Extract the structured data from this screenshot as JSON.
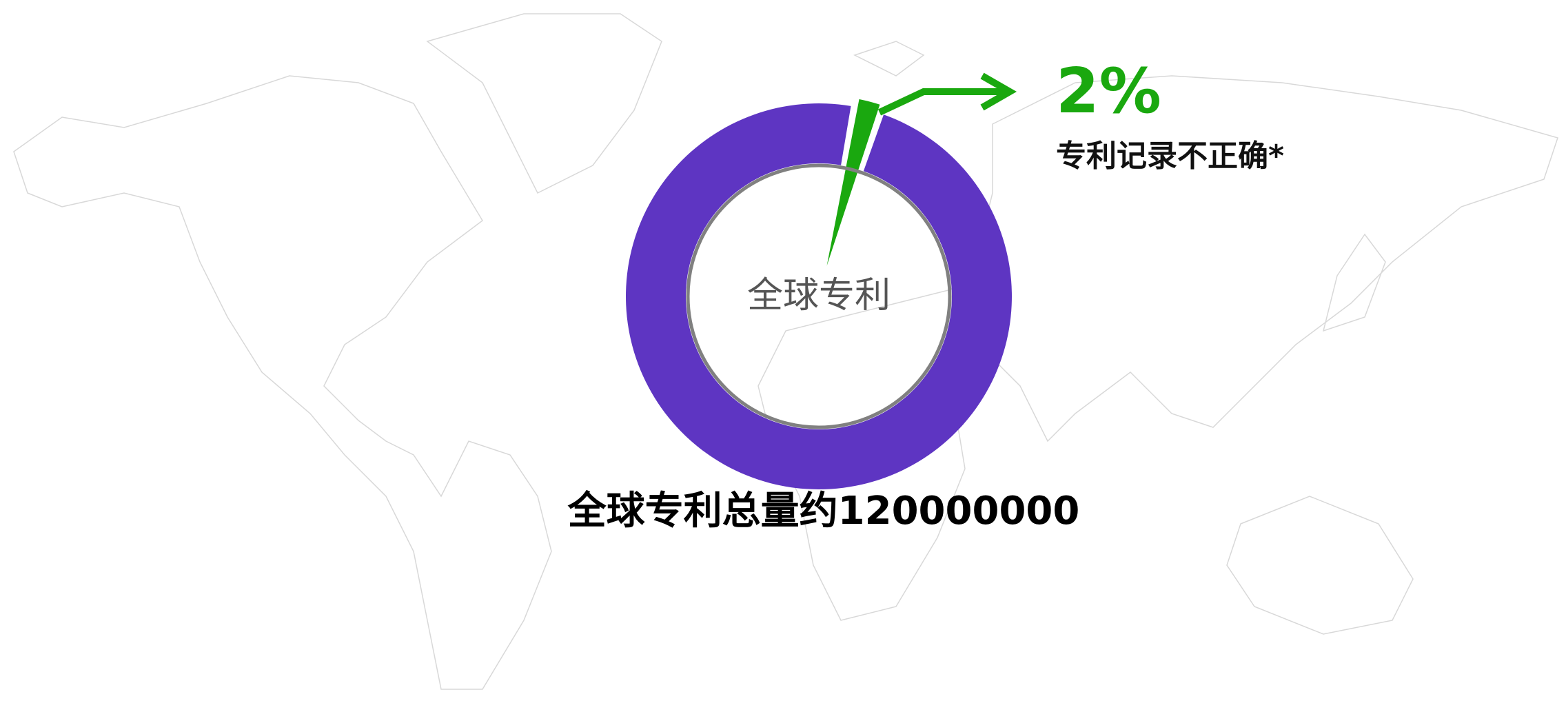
{
  "chart_data": {
    "type": "donut",
    "center_label": "全球专利",
    "annotation": "全球专利总量约120000000",
    "categories": [
      "专利记录不正确*",
      null
    ],
    "values": [
      2,
      98
    ],
    "value_labels": [
      "2%",
      null
    ],
    "colors": [
      "#1aa80f",
      "#5e35c2"
    ]
  }
}
